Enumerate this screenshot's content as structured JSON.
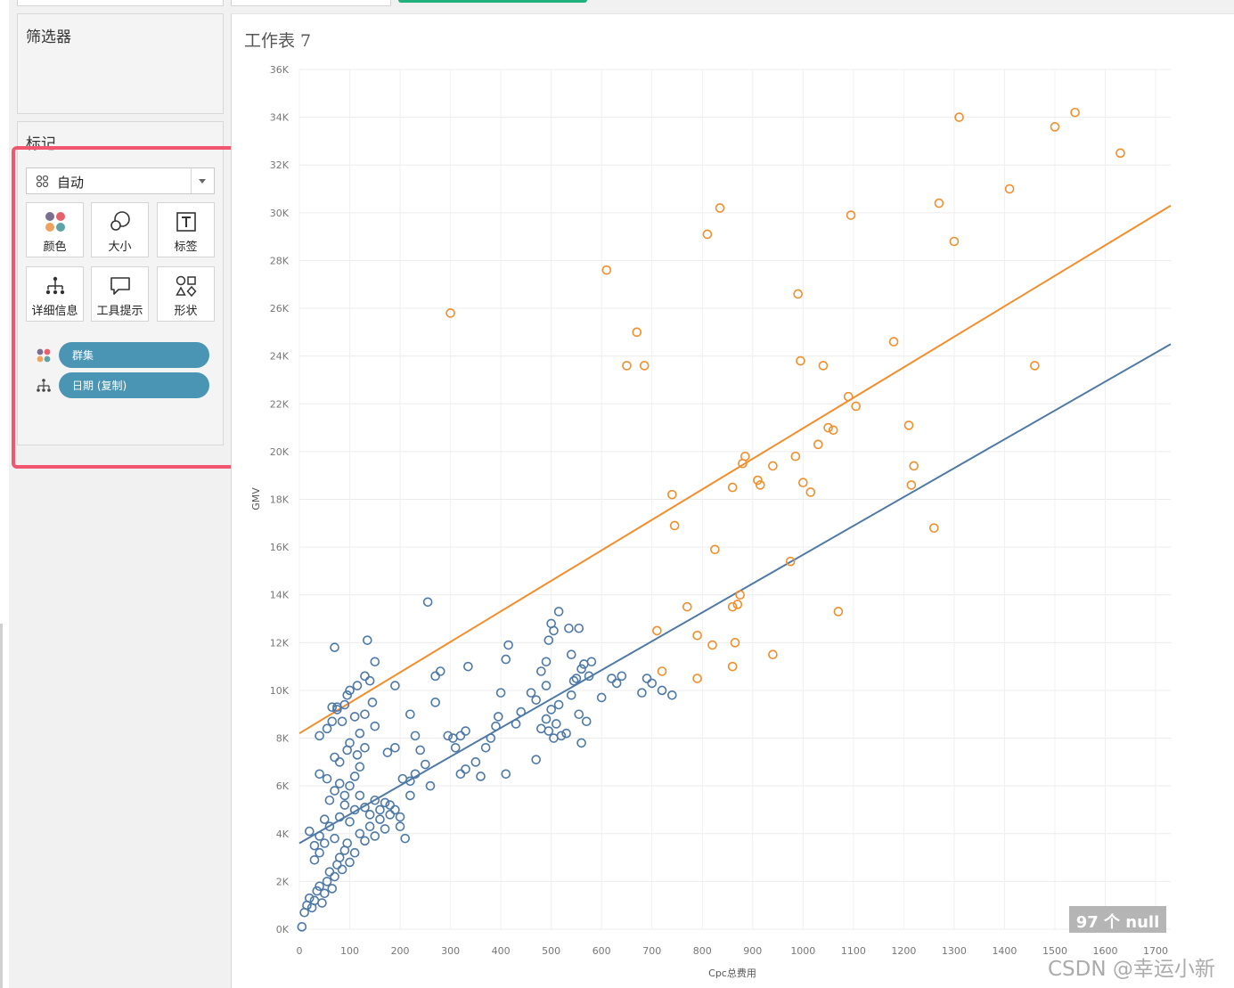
{
  "filters_card": {
    "title": "筛选器"
  },
  "marks_card": {
    "title": "标记",
    "mark_type": "自动",
    "buttons": [
      {
        "label": "颜色",
        "icon": "color-icon"
      },
      {
        "label": "大小",
        "icon": "size-icon"
      },
      {
        "label": "标签",
        "icon": "label-icon"
      },
      {
        "label": "详细信息",
        "icon": "detail-icon"
      },
      {
        "label": "工具提示",
        "icon": "tooltip-icon"
      },
      {
        "label": "形状",
        "icon": "shape-icon"
      }
    ],
    "pills": [
      {
        "label": "群集",
        "icon": "color-icon"
      },
      {
        "label": "日期 (复制)",
        "icon": "detail-icon"
      }
    ]
  },
  "sheet": {
    "title": "工作表 7"
  },
  "null_badge": "97 个 null",
  "watermark": "CSDN @幸运小新",
  "colors": {
    "cluster1": "#4e79a7",
    "cluster2": "#f28e2b",
    "pill": "#4a95b3",
    "highlight": "#f2566f",
    "tab_accent": "#22b07d"
  },
  "chart_data": {
    "type": "scatter",
    "title": "",
    "xlabel": "Cpc总费用",
    "ylabel": "GMV",
    "xlim": [
      0,
      1730
    ],
    "ylim": [
      0,
      36000
    ],
    "xticks": [
      "0",
      "100",
      "200",
      "300",
      "400",
      "500",
      "600",
      "700",
      "800",
      "900",
      "1000",
      "1100",
      "1200",
      "1300",
      "1400",
      "1500",
      "1600",
      "1700"
    ],
    "yticks": [
      "0K",
      "2K",
      "4K",
      "6K",
      "8K",
      "10K",
      "12K",
      "14K",
      "16K",
      "18K",
      "20K",
      "22K",
      "24K",
      "26K",
      "28K",
      "30K",
      "32K",
      "34K",
      "36K"
    ],
    "grid": true,
    "marker": "open-circle",
    "series": [
      {
        "color": "#4e79a7",
        "trend": [
          [
            0,
            3600
          ],
          [
            1730,
            24500
          ]
        ],
        "points": [
          [
            5,
            100
          ],
          [
            10,
            700
          ],
          [
            15,
            1000
          ],
          [
            20,
            1300
          ],
          [
            25,
            900
          ],
          [
            30,
            1200
          ],
          [
            35,
            1600
          ],
          [
            40,
            1800
          ],
          [
            45,
            1100
          ],
          [
            50,
            1500
          ],
          [
            55,
            2000
          ],
          [
            60,
            2400
          ],
          [
            65,
            1700
          ],
          [
            70,
            2200
          ],
          [
            75,
            2700
          ],
          [
            80,
            3000
          ],
          [
            85,
            2500
          ],
          [
            90,
            3300
          ],
          [
            95,
            3600
          ],
          [
            100,
            2800
          ],
          [
            110,
            3200
          ],
          [
            120,
            4000
          ],
          [
            130,
            3700
          ],
          [
            140,
            4300
          ],
          [
            150,
            3900
          ],
          [
            160,
            4600
          ],
          [
            170,
            4200
          ],
          [
            180,
            4800
          ],
          [
            200,
            4300
          ],
          [
            210,
            3800
          ],
          [
            20,
            4100
          ],
          [
            30,
            3500
          ],
          [
            40,
            3900
          ],
          [
            50,
            4600
          ],
          [
            60,
            4300
          ],
          [
            70,
            3800
          ],
          [
            80,
            4700
          ],
          [
            90,
            5200
          ],
          [
            100,
            4500
          ],
          [
            110,
            5000
          ],
          [
            120,
            5600
          ],
          [
            130,
            5100
          ],
          [
            140,
            4800
          ],
          [
            150,
            5400
          ],
          [
            160,
            5000
          ],
          [
            170,
            5300
          ],
          [
            180,
            5200
          ],
          [
            190,
            5000
          ],
          [
            200,
            4700
          ],
          [
            220,
            5600
          ],
          [
            30,
            2900
          ],
          [
            40,
            3200
          ],
          [
            50,
            3600
          ],
          [
            60,
            5400
          ],
          [
            70,
            5800
          ],
          [
            80,
            6100
          ],
          [
            90,
            5600
          ],
          [
            100,
            6000
          ],
          [
            110,
            6400
          ],
          [
            120,
            6800
          ],
          [
            40,
            6500
          ],
          [
            55,
            6300
          ],
          [
            70,
            7200
          ],
          [
            80,
            7000
          ],
          [
            95,
            7500
          ],
          [
            100,
            7800
          ],
          [
            115,
            7300
          ],
          [
            130,
            7600
          ],
          [
            150,
            8500
          ],
          [
            175,
            7400
          ],
          [
            40,
            8100
          ],
          [
            55,
            8400
          ],
          [
            65,
            9300
          ],
          [
            75,
            9300
          ],
          [
            85,
            8700
          ],
          [
            95,
            9800
          ],
          [
            110,
            8900
          ],
          [
            120,
            8200
          ],
          [
            130,
            9000
          ],
          [
            140,
            10400
          ],
          [
            65,
            8700
          ],
          [
            75,
            9200
          ],
          [
            90,
            9400
          ],
          [
            100,
            10000
          ],
          [
            115,
            10200
          ],
          [
            130,
            10600
          ],
          [
            145,
            9500
          ],
          [
            150,
            11200
          ],
          [
            135,
            12100
          ],
          [
            70,
            11800
          ],
          [
            190,
            10200
          ],
          [
            205,
            6300
          ],
          [
            220,
            6200
          ],
          [
            230,
            6500
          ],
          [
            240,
            7500
          ],
          [
            250,
            6900
          ],
          [
            260,
            6000
          ],
          [
            230,
            8100
          ],
          [
            220,
            9000
          ],
          [
            190,
            7600
          ],
          [
            270,
            9500
          ],
          [
            280,
            10800
          ],
          [
            295,
            8100
          ],
          [
            305,
            8000
          ],
          [
            320,
            8100
          ],
          [
            330,
            8300
          ],
          [
            310,
            7600
          ],
          [
            320,
            6500
          ],
          [
            330,
            6700
          ],
          [
            350,
            7000
          ],
          [
            370,
            7600
          ],
          [
            380,
            8000
          ],
          [
            390,
            8500
          ],
          [
            395,
            8900
          ],
          [
            400,
            9900
          ],
          [
            410,
            11300
          ],
          [
            415,
            11900
          ],
          [
            335,
            11000
          ],
          [
            360,
            6400
          ],
          [
            410,
            6500
          ],
          [
            430,
            8600
          ],
          [
            440,
            9100
          ],
          [
            460,
            9900
          ],
          [
            470,
            9600
          ],
          [
            480,
            8400
          ],
          [
            490,
            8800
          ],
          [
            495,
            8300
          ],
          [
            500,
            9200
          ],
          [
            505,
            8000
          ],
          [
            510,
            8600
          ],
          [
            515,
            9400
          ],
          [
            520,
            8100
          ],
          [
            530,
            8200
          ],
          [
            540,
            9800
          ],
          [
            545,
            10400
          ],
          [
            550,
            10500
          ],
          [
            560,
            10900
          ],
          [
            565,
            11100
          ],
          [
            575,
            10600
          ],
          [
            580,
            11200
          ],
          [
            480,
            10800
          ],
          [
            490,
            11200
          ],
          [
            495,
            12100
          ],
          [
            500,
            12800
          ],
          [
            505,
            12500
          ],
          [
            515,
            13300
          ],
          [
            535,
            12600
          ],
          [
            540,
            11500
          ],
          [
            555,
            12600
          ],
          [
            490,
            10200
          ],
          [
            560,
            7800
          ],
          [
            570,
            8700
          ],
          [
            555,
            9000
          ],
          [
            600,
            9700
          ],
          [
            620,
            10500
          ],
          [
            630,
            10300
          ],
          [
            640,
            10600
          ],
          [
            690,
            10500
          ],
          [
            700,
            10300
          ],
          [
            720,
            10000
          ],
          [
            680,
            9900
          ],
          [
            740,
            9800
          ],
          [
            255,
            13700
          ],
          [
            270,
            10600
          ],
          [
            470,
            7100
          ]
        ]
      },
      {
        "color": "#f28e2b",
        "trend": [
          [
            0,
            8200
          ],
          [
            1730,
            30300
          ]
        ],
        "points": [
          [
            300,
            25800
          ],
          [
            610,
            27600
          ],
          [
            650,
            23600
          ],
          [
            670,
            25000
          ],
          [
            685,
            23600
          ],
          [
            710,
            12500
          ],
          [
            720,
            10800
          ],
          [
            740,
            18200
          ],
          [
            745,
            16900
          ],
          [
            770,
            13500
          ],
          [
            790,
            12300
          ],
          [
            790,
            10500
          ],
          [
            810,
            29100
          ],
          [
            820,
            11900
          ],
          [
            825,
            15900
          ],
          [
            835,
            30200
          ],
          [
            860,
            11000
          ],
          [
            860,
            13500
          ],
          [
            860,
            18500
          ],
          [
            865,
            12000
          ],
          [
            870,
            13600
          ],
          [
            875,
            14000
          ],
          [
            880,
            19500
          ],
          [
            885,
            19800
          ],
          [
            910,
            18800
          ],
          [
            915,
            18600
          ],
          [
            940,
            19400
          ],
          [
            940,
            11500
          ],
          [
            975,
            15400
          ],
          [
            985,
            19800
          ],
          [
            990,
            26600
          ],
          [
            995,
            23800
          ],
          [
            1000,
            18700
          ],
          [
            1015,
            18300
          ],
          [
            1030,
            20300
          ],
          [
            1040,
            23600
          ],
          [
            1050,
            21000
          ],
          [
            1060,
            20900
          ],
          [
            1070,
            13300
          ],
          [
            1090,
            22300
          ],
          [
            1095,
            29900
          ],
          [
            1105,
            21900
          ],
          [
            1180,
            24600
          ],
          [
            1210,
            21100
          ],
          [
            1215,
            18600
          ],
          [
            1220,
            19400
          ],
          [
            1260,
            16800
          ],
          [
            1270,
            30400
          ],
          [
            1300,
            28800
          ],
          [
            1310,
            34000
          ],
          [
            1410,
            31000
          ],
          [
            1460,
            23600
          ],
          [
            1500,
            33600
          ],
          [
            1540,
            34200
          ],
          [
            1630,
            32500
          ]
        ]
      }
    ]
  }
}
